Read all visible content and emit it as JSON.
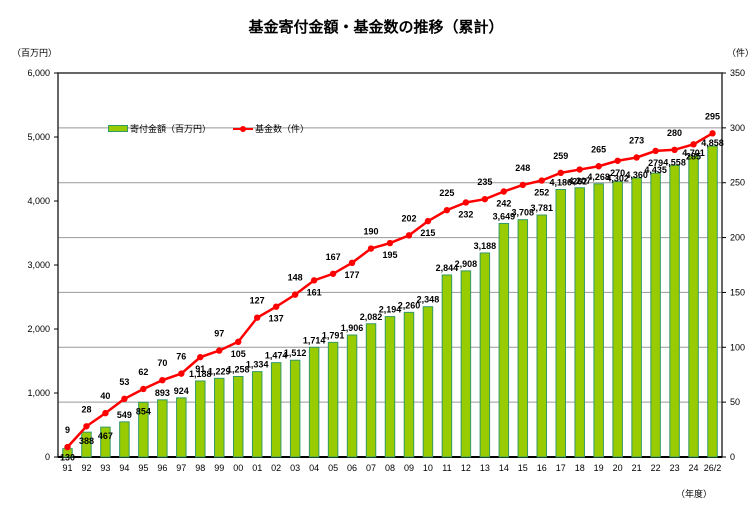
{
  "title": "基金寄付金額・基金数の推移（累計）",
  "left_unit": "（百万円）",
  "right_unit": "（件）",
  "x_unit": "（年度）",
  "legend": {
    "bar_label": "寄付金額（百万円）",
    "line_label": "基金数（件）"
  },
  "colors": {
    "bar": "#99cc00",
    "bar_edge": "#339966",
    "line": "#ff0000",
    "grid": "#999999",
    "axis": "#000000"
  },
  "chart_data": {
    "type": "bar+line",
    "title": "基金寄付金額・基金数の推移（累計）",
    "xlabel": "（年度）",
    "ylabel_left": "（百万円）",
    "ylabel_right": "（件）",
    "ylim_left": [
      0,
      6000
    ],
    "ylim_right": [
      0,
      350
    ],
    "yticks_left": [
      "0",
      "1,000",
      "2,000",
      "3,000",
      "4,000",
      "5,000",
      "6,000"
    ],
    "yticks_right": [
      "0",
      "50",
      "100",
      "150",
      "200",
      "250",
      "300",
      "350"
    ],
    "grid": "horizontal at right-axis ticks",
    "legend_position": "top-left inside plot",
    "categories": [
      "91",
      "92",
      "93",
      "94",
      "95",
      "96",
      "97",
      "98",
      "99",
      "00",
      "01",
      "02",
      "03",
      "04",
      "05",
      "06",
      "07",
      "08",
      "09",
      "10",
      "11",
      "12",
      "13",
      "14",
      "15",
      "16",
      "17",
      "18",
      "19",
      "20",
      "21",
      "22",
      "23",
      "24",
      "26/2"
    ],
    "series": [
      {
        "name": "寄付金額（百万円）",
        "type": "bar",
        "axis": "left",
        "values": [
          130,
          388,
          467,
          549,
          854,
          893,
          924,
          1188,
          1229,
          1258,
          1334,
          1474,
          1512,
          1714,
          1791,
          1906,
          2082,
          2194,
          2260,
          2348,
          2844,
          2908,
          3188,
          3649,
          3708,
          3781,
          4180,
          4207,
          4268,
          4302,
          4360,
          4435,
          4558,
          4701,
          4858
        ]
      },
      {
        "name": "基金数（件）",
        "type": "line",
        "axis": "right",
        "values": [
          9,
          28,
          40,
          53,
          62,
          70,
          76,
          91,
          97,
          105,
          127,
          137,
          148,
          161,
          167,
          177,
          190,
          195,
          202,
          215,
          225,
          232,
          235,
          242,
          248,
          252,
          259,
          262,
          265,
          270,
          273,
          279,
          280,
          285,
          295
        ]
      }
    ]
  }
}
